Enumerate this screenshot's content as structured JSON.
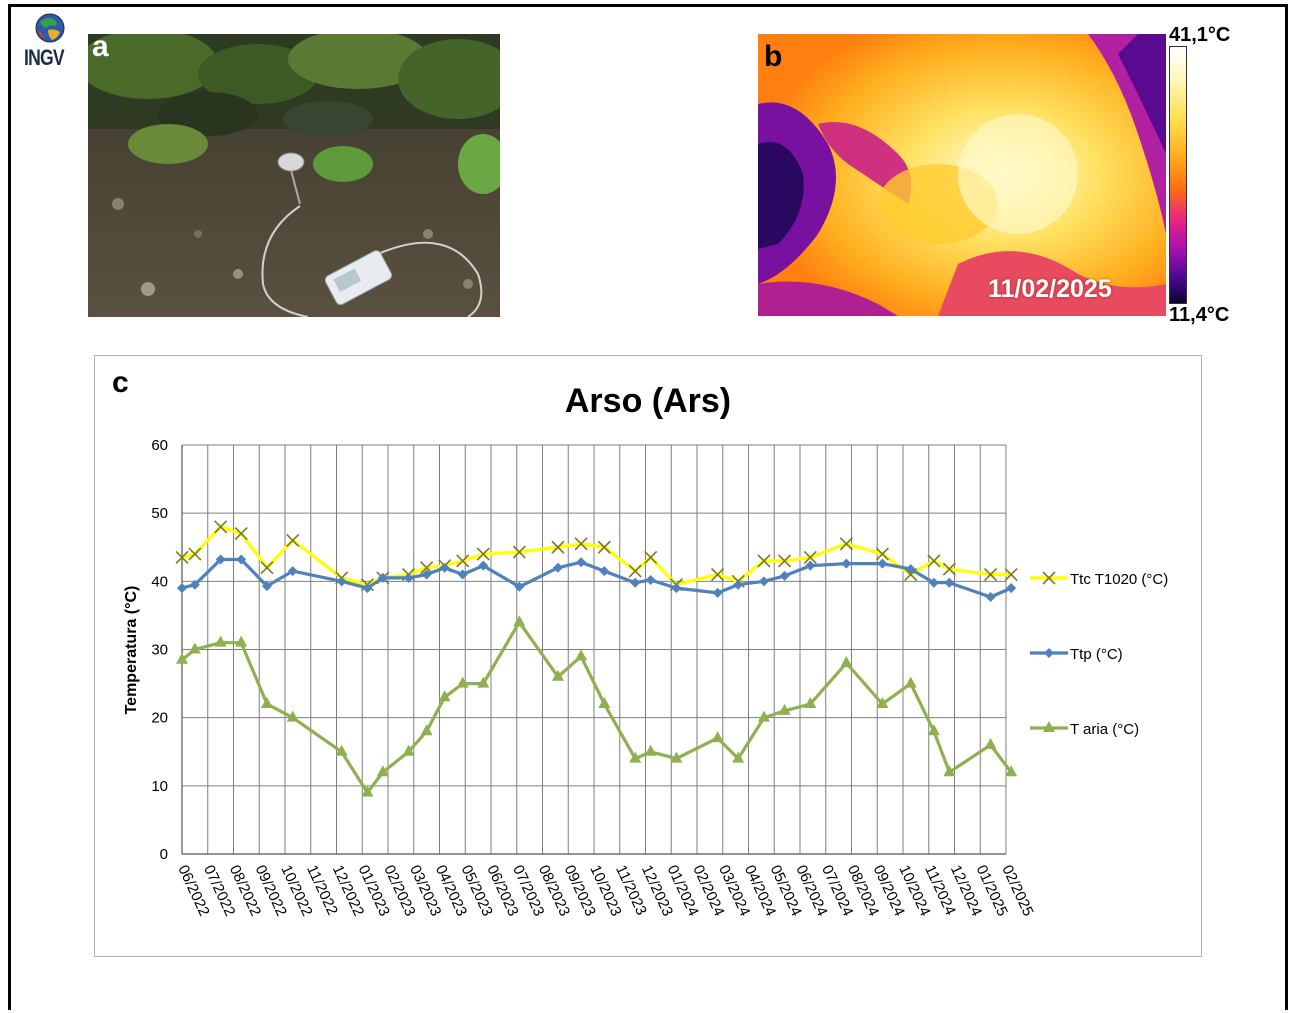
{
  "logo": {
    "text": "INGV",
    "icon": "globe-icon"
  },
  "panel_a": {
    "label": "a",
    "image": "photo of thermocouple probe on volcanic ground with mossy rocks"
  },
  "panel_b": {
    "label": "b",
    "date": "11/02/2025",
    "scale_max": "41,1°C",
    "scale_min": "11,4°C"
  },
  "panel_c": {
    "label": "c"
  },
  "colors": {
    "ttc": "#ffff00",
    "ttp": "#4f81bd",
    "taria": "#8fb050",
    "grid": "#7f7f7f"
  },
  "chart_data": {
    "type": "line",
    "title": "Arso (Ars)",
    "ylabel": "Temperatura (°C)",
    "xlabel": "",
    "ylim": [
      0,
      60
    ],
    "yticks": [
      0,
      10,
      20,
      30,
      40,
      50,
      60
    ],
    "grid": true,
    "legend_position": "right",
    "categories": [
      "06/2022",
      "07/2022",
      "08/2022",
      "09/2022",
      "10/2022",
      "11/2022",
      "12/2022",
      "01/2023",
      "02/2023",
      "03/2023",
      "04/2023",
      "05/2023",
      "06/2023",
      "07/2023",
      "08/2023",
      "09/2023",
      "10/2023",
      "11/2023",
      "12/2023",
      "01/2024",
      "02/2024",
      "03/2024",
      "04/2024",
      "05/2024",
      "06/2024",
      "07/2024",
      "08/2024",
      "09/2024",
      "10/2024",
      "11/2024",
      "12/2024",
      "01/2025",
      "02/2025"
    ],
    "series": [
      {
        "name": "Ttc T1020 (°C)",
        "marker": "x",
        "points": [
          [
            0,
            43.5
          ],
          [
            0.5,
            44
          ],
          [
            1.5,
            48
          ],
          [
            2.3,
            47
          ],
          [
            3.3,
            42
          ],
          [
            4.3,
            46
          ],
          [
            6.2,
            40.5
          ],
          [
            7.2,
            39.5
          ],
          [
            7.8,
            40.5
          ],
          [
            8.8,
            41
          ],
          [
            9.5,
            42
          ],
          [
            10.2,
            42.3
          ],
          [
            10.9,
            43
          ],
          [
            11.7,
            44
          ],
          [
            13.1,
            44.3
          ],
          [
            14.6,
            45
          ],
          [
            15.5,
            45.5
          ],
          [
            16.4,
            45
          ],
          [
            17.6,
            41.5
          ],
          [
            18.2,
            43.5
          ],
          [
            19.2,
            39.5
          ],
          [
            20.8,
            41
          ],
          [
            21.6,
            40
          ],
          [
            22.6,
            43
          ],
          [
            23.4,
            43
          ],
          [
            24.4,
            43.5
          ],
          [
            25.8,
            45.5
          ],
          [
            27.2,
            44
          ],
          [
            28.3,
            41
          ],
          [
            29.2,
            43
          ],
          [
            29.8,
            41.8
          ],
          [
            31.4,
            41
          ],
          [
            32.2,
            41
          ]
        ]
      },
      {
        "name": "Ttp (°C)",
        "marker": "diamond",
        "points": [
          [
            0,
            39
          ],
          [
            0.5,
            39.5
          ],
          [
            1.5,
            43.2
          ],
          [
            2.3,
            43.2
          ],
          [
            3.3,
            39.3
          ],
          [
            4.3,
            41.5
          ],
          [
            6.2,
            40
          ],
          [
            7.2,
            39
          ],
          [
            7.8,
            40.5
          ],
          [
            8.8,
            40.5
          ],
          [
            9.5,
            41
          ],
          [
            10.2,
            42
          ],
          [
            10.9,
            41
          ],
          [
            11.7,
            42.3
          ],
          [
            13.1,
            39.2
          ],
          [
            14.6,
            42
          ],
          [
            15.5,
            42.8
          ],
          [
            16.4,
            41.5
          ],
          [
            17.6,
            39.8
          ],
          [
            18.2,
            40.2
          ],
          [
            19.2,
            39
          ],
          [
            20.8,
            38.3
          ],
          [
            21.6,
            39.5
          ],
          [
            22.6,
            40
          ],
          [
            23.4,
            40.8
          ],
          [
            24.4,
            42.3
          ],
          [
            25.8,
            42.6
          ],
          [
            27.2,
            42.6
          ],
          [
            28.3,
            41.8
          ],
          [
            29.2,
            39.8
          ],
          [
            29.8,
            39.8
          ],
          [
            31.4,
            37.7
          ],
          [
            32.2,
            39
          ]
        ]
      },
      {
        "name": "T aria (°C)",
        "marker": "triangle",
        "points": [
          [
            0,
            28.5
          ],
          [
            0.5,
            30
          ],
          [
            1.5,
            31
          ],
          [
            2.3,
            31
          ],
          [
            3.3,
            22
          ],
          [
            4.3,
            20
          ],
          [
            6.2,
            15
          ],
          [
            7.2,
            9
          ],
          [
            7.8,
            12
          ],
          [
            8.8,
            15
          ],
          [
            9.5,
            18
          ],
          [
            10.2,
            23
          ],
          [
            10.9,
            25
          ],
          [
            11.7,
            25
          ],
          [
            13.1,
            34
          ],
          [
            14.6,
            26
          ],
          [
            15.5,
            29
          ],
          [
            16.4,
            22
          ],
          [
            17.6,
            14
          ],
          [
            18.2,
            15
          ],
          [
            19.2,
            14
          ],
          [
            20.8,
            17
          ],
          [
            21.6,
            14
          ],
          [
            22.6,
            20
          ],
          [
            23.4,
            21
          ],
          [
            24.4,
            22
          ],
          [
            25.8,
            28
          ],
          [
            27.2,
            22
          ],
          [
            28.3,
            25
          ],
          [
            29.2,
            18
          ],
          [
            29.8,
            12
          ],
          [
            31.4,
            16
          ],
          [
            32.2,
            12
          ]
        ]
      }
    ]
  }
}
